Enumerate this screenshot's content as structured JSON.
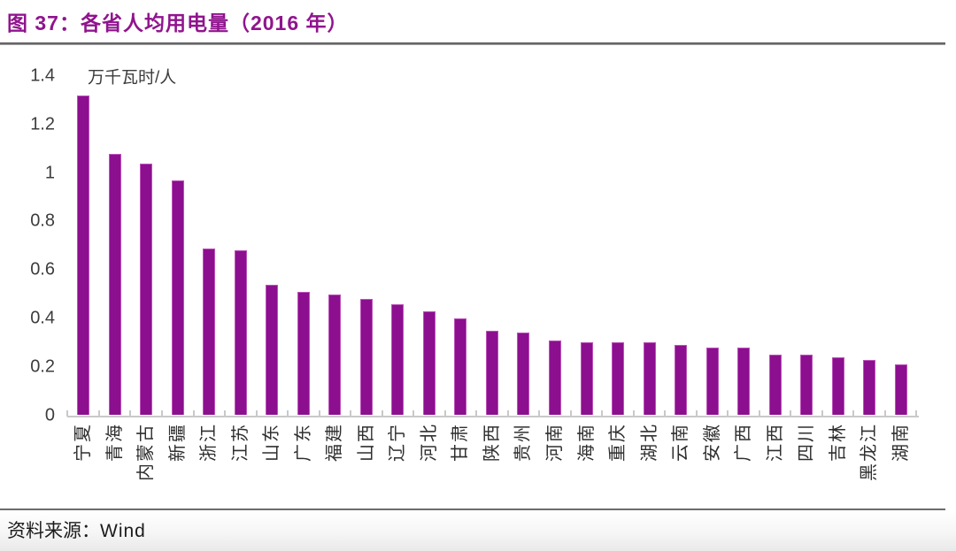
{
  "figure": {
    "title": "图 37：各省人均用电量（2016 年）",
    "source_label": "资料来源：",
    "source_value": "Wind"
  },
  "chart_data": {
    "type": "bar",
    "title": "各省人均用电量（2016 年）",
    "unit_label": "万千瓦时/人",
    "categories": [
      "宁夏",
      "青海",
      "内蒙古",
      "新疆",
      "浙江",
      "江苏",
      "山东",
      "广东",
      "福建",
      "山西",
      "辽宁",
      "河北",
      "甘肃",
      "陕西",
      "贵州",
      "河南",
      "海南",
      "重庆",
      "湖北",
      "云南",
      "安徽",
      "广西",
      "江西",
      "四川",
      "吉林",
      "黑龙江",
      "湖南"
    ],
    "values": [
      1.32,
      1.08,
      1.04,
      0.97,
      0.69,
      0.68,
      0.54,
      0.51,
      0.5,
      0.48,
      0.46,
      0.43,
      0.4,
      0.35,
      0.34,
      0.31,
      0.3,
      0.3,
      0.3,
      0.29,
      0.28,
      0.28,
      0.25,
      0.25,
      0.24,
      0.23,
      0.21
    ],
    "ylabel": "万千瓦时/人",
    "xlabel": "",
    "ylim": [
      0,
      1.4
    ],
    "yticks": [
      0,
      0.2,
      0.4,
      0.6,
      0.8,
      1,
      1.2,
      1.4
    ],
    "ytick_labels": [
      "0",
      "0.2",
      "0.4",
      "0.6",
      "0.8",
      "1",
      "1.2",
      "1.4"
    ],
    "grid": false,
    "legend_position": "none",
    "x_label_rotation_deg": -90
  },
  "colors": {
    "bar_fill": "#8C0F8F",
    "bar_border": "#BC52BA",
    "title_accent": "#90148E",
    "axis_line": "#C9C9C9",
    "axis_text": "#3C3C3C",
    "source_text": "#1C1C1C"
  }
}
